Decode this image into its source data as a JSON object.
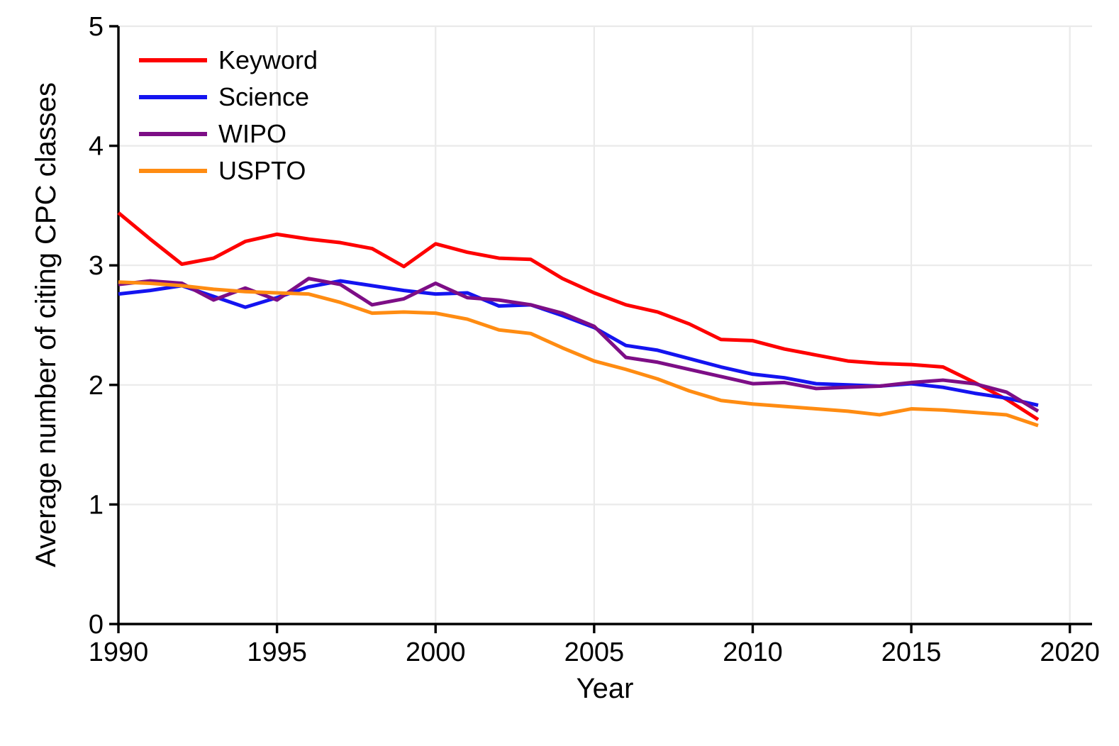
{
  "chart_data": {
    "type": "line",
    "title": "",
    "xlabel": "Year",
    "ylabel": "Average number of citing CPC classes",
    "xlim": [
      1990,
      2020.7
    ],
    "ylim": [
      0,
      5
    ],
    "x_ticks": [
      1990,
      1995,
      2000,
      2005,
      2010,
      2015,
      2020
    ],
    "y_ticks": [
      0,
      1,
      2,
      3,
      4,
      5
    ],
    "grid": true,
    "legend_position": "top-left",
    "background": "#ffffff",
    "axis_color": "#000000",
    "grid_color": "#eaeaea",
    "x": [
      1990,
      1991,
      1992,
      1993,
      1994,
      1995,
      1996,
      1997,
      1998,
      1999,
      2000,
      2001,
      2002,
      2003,
      2004,
      2005,
      2006,
      2007,
      2008,
      2009,
      2010,
      2011,
      2012,
      2013,
      2014,
      2015,
      2016,
      2017,
      2018,
      2019
    ],
    "series": [
      {
        "name": "Keyword",
        "color": "#fe0000",
        "values": [
          3.44,
          3.22,
          3.01,
          3.06,
          3.2,
          3.26,
          3.22,
          3.19,
          3.14,
          2.99,
          3.18,
          3.11,
          3.06,
          3.05,
          2.89,
          2.77,
          2.67,
          2.61,
          2.51,
          2.38,
          2.37,
          2.3,
          2.25,
          2.2,
          2.18,
          2.17,
          2.15,
          2.02,
          1.88,
          1.71
        ]
      },
      {
        "name": "Science",
        "color": "#1414f0",
        "values": [
          2.76,
          2.79,
          2.83,
          2.74,
          2.65,
          2.73,
          2.82,
          2.87,
          2.83,
          2.79,
          2.76,
          2.77,
          2.66,
          2.67,
          2.58,
          2.48,
          2.33,
          2.29,
          2.22,
          2.15,
          2.09,
          2.06,
          2.01,
          2.0,
          1.99,
          2.01,
          1.98,
          1.93,
          1.89,
          1.83
        ]
      },
      {
        "name": "WIPO",
        "color": "#7d0e86",
        "values": [
          2.84,
          2.87,
          2.85,
          2.71,
          2.81,
          2.71,
          2.89,
          2.84,
          2.67,
          2.72,
          2.85,
          2.73,
          2.71,
          2.67,
          2.6,
          2.49,
          2.23,
          2.19,
          2.13,
          2.07,
          2.01,
          2.02,
          1.97,
          1.98,
          1.99,
          2.02,
          2.04,
          2.01,
          1.94,
          1.78
        ]
      },
      {
        "name": "USPTO",
        "color": "#ff8c12",
        "values": [
          2.86,
          2.85,
          2.83,
          2.8,
          2.78,
          2.77,
          2.76,
          2.69,
          2.6,
          2.61,
          2.6,
          2.55,
          2.46,
          2.43,
          2.31,
          2.2,
          2.13,
          2.05,
          1.95,
          1.87,
          1.84,
          1.82,
          1.8,
          1.78,
          1.75,
          1.8,
          1.79,
          1.77,
          1.75,
          1.66
        ]
      }
    ]
  }
}
